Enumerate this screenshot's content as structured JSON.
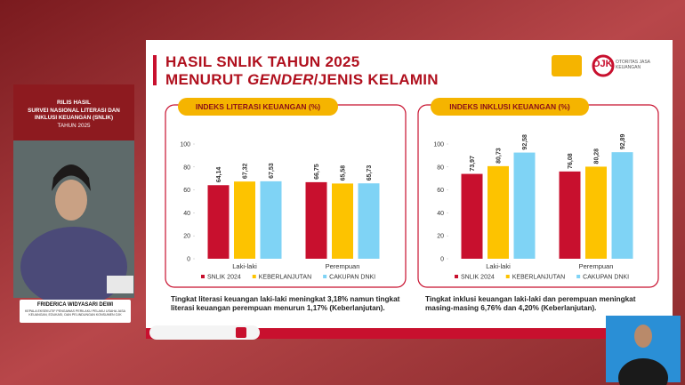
{
  "slide": {
    "title_line1": "HASIL SNLIK TAHUN 2025",
    "title_line2_a": "MENURUT ",
    "title_line2_b": "GENDER",
    "title_line2_c": "/JENIS KELAMIN",
    "logo": "OJK",
    "logo_caption": "OTORITAS JASA KEUANGAN"
  },
  "speaker_panel": {
    "event_line1": "RILIS HASIL",
    "event_line2": "SURVEI NASIONAL LITERASI DAN INKLUSI KEUANGAN (SNLIK)",
    "event_line3": "TAHUN 2025",
    "name": "FRIDERICA WIDYASARI DEWI",
    "role": "KEPALA EKSEKUTIF PENGAWAS PERILAKU PELAKU USAHA JASA KEUANGAN, EDUKASI, DAN PELINDUNGAN KONSUMEN OJK"
  },
  "chart_data": [
    {
      "type": "bar",
      "title": "INDEKS LITERASI KEUANGAN (%)",
      "categories": [
        "Laki-laki",
        "Perempuan"
      ],
      "series": [
        {
          "name": "SNLIK 2024",
          "color": "#c8102e",
          "values": [
            64.14,
            66.75
          ],
          "value_labels": [
            "64,14",
            "66,75"
          ]
        },
        {
          "name": "KEBERLANJUTAN",
          "color": "#fdc300",
          "values": [
            67.32,
            65.58
          ],
          "value_labels": [
            "67,32",
            "65,58"
          ]
        },
        {
          "name": "CAKUPAN DNKI",
          "color": "#7fd3f5",
          "values": [
            67.53,
            65.73
          ],
          "value_labels": [
            "67,53",
            "65,73"
          ]
        }
      ],
      "ylim": [
        0,
        100
      ],
      "yticks": [
        0,
        20,
        40,
        60,
        80,
        100
      ],
      "note": "Tingkat literasi keuangan laki-laki meningkat 3,18% namun tingkat literasi keuangan perempuan menurun 1,17% (Keberlanjutan)."
    },
    {
      "type": "bar",
      "title": "INDEKS INKLUSI KEUANGAN (%)",
      "categories": [
        "Laki-laki",
        "Perempuan"
      ],
      "series": [
        {
          "name": "SNLIK 2024",
          "color": "#c8102e",
          "values": [
            73.97,
            76.08
          ],
          "value_labels": [
            "73,97",
            "76,08"
          ]
        },
        {
          "name": "KEBERLANJUTAN",
          "color": "#fdc300",
          "values": [
            80.73,
            80.28
          ],
          "value_labels": [
            "80,73",
            "80,28"
          ]
        },
        {
          "name": "CAKUPAN DNKI",
          "color": "#7fd3f5",
          "values": [
            92.58,
            92.89
          ],
          "value_labels": [
            "92,58",
            "92,89"
          ]
        }
      ],
      "ylim": [
        0,
        100
      ],
      "yticks": [
        0,
        20,
        40,
        60,
        80,
        100
      ],
      "note": "Tingkat inklusi keuangan laki-laki dan perempuan meningkat masing-masing 6,76% dan 4,20% (Keberlanjutan)."
    }
  ]
}
